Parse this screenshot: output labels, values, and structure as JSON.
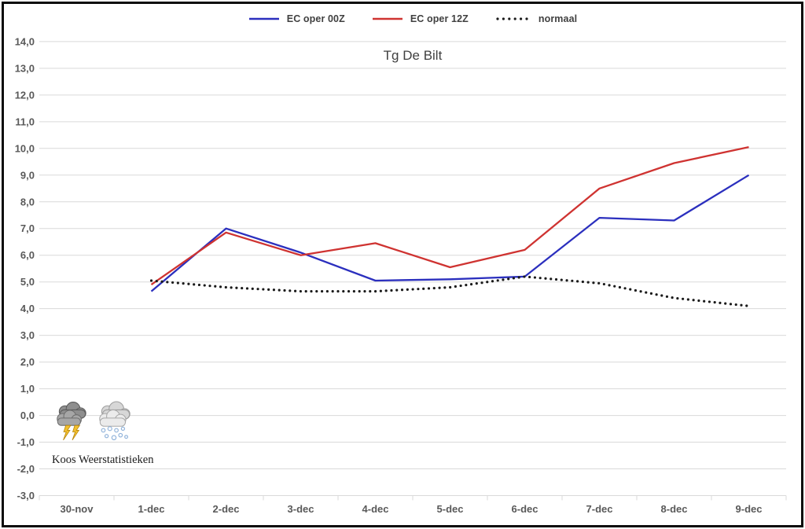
{
  "window": {
    "background": "#ffffff",
    "border_color": "#0a0a0a"
  },
  "chart_data": {
    "type": "line",
    "title": "Tg De Bilt",
    "categories": [
      "30-nov",
      "1-dec",
      "2-dec",
      "3-dec",
      "4-dec",
      "5-dec",
      "6-dec",
      "7-dec",
      "8-dec",
      "9-dec"
    ],
    "series": [
      {
        "name": "EC oper 00Z",
        "color": "#2b2fbe",
        "style": "solid",
        "values": [
          null,
          4.65,
          7.0,
          6.1,
          5.05,
          5.1,
          5.2,
          7.4,
          7.3,
          9.0
        ]
      },
      {
        "name": "EC oper 12Z",
        "color": "#cf3331",
        "style": "solid",
        "values": [
          null,
          4.9,
          6.85,
          6.0,
          6.45,
          5.55,
          6.2,
          8.5,
          9.45,
          10.05
        ]
      },
      {
        "name": "normaal",
        "color": "#1a1a1a",
        "style": "dotted",
        "values": [
          null,
          5.05,
          4.8,
          4.65,
          4.65,
          4.8,
          5.2,
          4.95,
          4.4,
          4.1
        ]
      }
    ],
    "ylim": [
      -3.0,
      14.0
    ],
    "y_tick_step": 1.0,
    "y_tick_labels": [
      "14,0",
      "13,0",
      "12,0",
      "11,0",
      "10,0",
      "9,0",
      "8,0",
      "7,0",
      "6,0",
      "5,0",
      "4,0",
      "3,0",
      "2,0",
      "1,0",
      "0,0",
      "-1,0",
      "-2,0",
      "-3,0"
    ],
    "grid": true,
    "legend_position": "top",
    "grid_color": "#d9d9d9",
    "axis_label_color": "#595959",
    "title_color": "#404040"
  },
  "branding": {
    "credit": "Koos Weerstatistieken",
    "icons": [
      "storm-cloud-icon",
      "snow-cloud-icon"
    ]
  }
}
